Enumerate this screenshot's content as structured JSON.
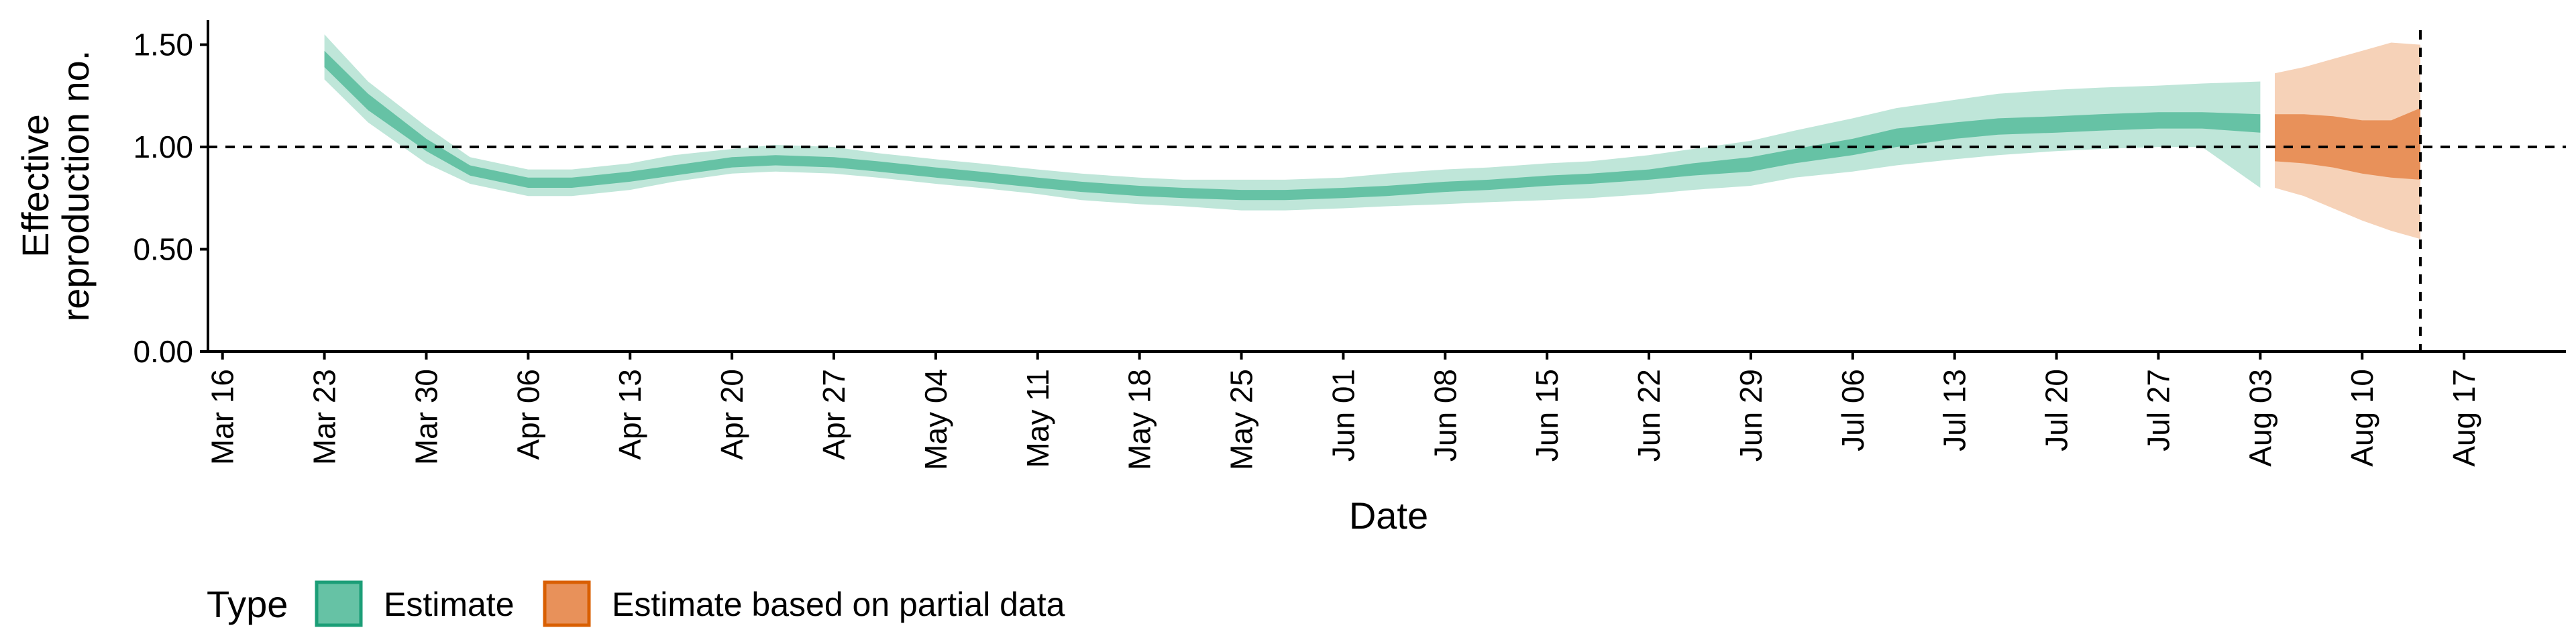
{
  "chart_data": {
    "type": "area",
    "xlabel": "Date",
    "ylabel_lines": [
      "Effective",
      "reproduction no."
    ],
    "ylim": [
      0,
      1.62
    ],
    "xlim": [
      "2020-03-15",
      "2020-08-24"
    ],
    "y_ticks": [
      "0.00",
      "0.50",
      "1.00",
      "1.50"
    ],
    "x_ticks": [
      "Mar 16",
      "Mar 23",
      "Mar 30",
      "Apr 06",
      "Apr 13",
      "Apr 20",
      "Apr 27",
      "May 04",
      "May 11",
      "May 18",
      "May 25",
      "Jun 01",
      "Jun 08",
      "Jun 15",
      "Jun 22",
      "Jun 29",
      "Jul 06",
      "Jul 13",
      "Jul 20",
      "Jul 27",
      "Aug 03",
      "Aug 10",
      "Aug 17"
    ],
    "reference_line_y": 1.0,
    "vertical_line_x": "2020-08-14",
    "legend": {
      "title": "Type",
      "position": "bottom-left",
      "entries": [
        "Estimate",
        "Estimate based on partial data"
      ]
    },
    "colors": {
      "estimate_inner": "#66c2a5",
      "estimate_outer": "#bfe6d9",
      "estimate_border": "#1b9e77",
      "partial_inner": "#e8915a",
      "partial_outer": "#f6d2b8",
      "partial_border": "#d95f02"
    },
    "series": [
      {
        "name": "Estimate",
        "x": [
          "2020-03-23",
          "2020-03-26",
          "2020-03-30",
          "2020-04-02",
          "2020-04-06",
          "2020-04-09",
          "2020-04-13",
          "2020-04-16",
          "2020-04-20",
          "2020-04-23",
          "2020-04-27",
          "2020-04-30",
          "2020-05-04",
          "2020-05-07",
          "2020-05-11",
          "2020-05-14",
          "2020-05-18",
          "2020-05-21",
          "2020-05-25",
          "2020-05-28",
          "2020-06-01",
          "2020-06-04",
          "2020-06-08",
          "2020-06-11",
          "2020-06-15",
          "2020-06-18",
          "2020-06-22",
          "2020-06-25",
          "2020-06-29",
          "2020-07-02",
          "2020-07-06",
          "2020-07-09",
          "2020-07-13",
          "2020-07-16",
          "2020-07-20",
          "2020-07-23",
          "2020-07-27",
          "2020-07-30",
          "2020-08-03"
        ],
        "median": [
          1.43,
          1.22,
          1.01,
          0.88,
          0.82,
          0.82,
          0.85,
          0.88,
          0.92,
          0.93,
          0.92,
          0.9,
          0.87,
          0.85,
          0.82,
          0.8,
          0.78,
          0.77,
          0.76,
          0.76,
          0.77,
          0.78,
          0.8,
          0.81,
          0.83,
          0.84,
          0.86,
          0.88,
          0.91,
          0.95,
          1.0,
          1.04,
          1.08,
          1.1,
          1.11,
          1.12,
          1.13,
          1.13,
          1.12
        ],
        "lower_50": [
          1.39,
          1.18,
          0.98,
          0.86,
          0.8,
          0.8,
          0.83,
          0.86,
          0.9,
          0.91,
          0.9,
          0.88,
          0.85,
          0.83,
          0.8,
          0.78,
          0.76,
          0.75,
          0.74,
          0.74,
          0.75,
          0.76,
          0.78,
          0.79,
          0.81,
          0.82,
          0.84,
          0.86,
          0.88,
          0.92,
          0.96,
          1.0,
          1.04,
          1.06,
          1.07,
          1.08,
          1.09,
          1.09,
          1.07
        ],
        "upper_50": [
          1.47,
          1.26,
          1.04,
          0.91,
          0.85,
          0.85,
          0.88,
          0.91,
          0.95,
          0.96,
          0.95,
          0.93,
          0.9,
          0.88,
          0.85,
          0.83,
          0.81,
          0.8,
          0.79,
          0.79,
          0.8,
          0.81,
          0.83,
          0.84,
          0.86,
          0.87,
          0.89,
          0.92,
          0.95,
          0.99,
          1.04,
          1.09,
          1.12,
          1.14,
          1.15,
          1.16,
          1.17,
          1.17,
          1.16
        ],
        "lower_90": [
          1.33,
          1.12,
          0.92,
          0.82,
          0.76,
          0.76,
          0.79,
          0.83,
          0.87,
          0.88,
          0.87,
          0.85,
          0.82,
          0.8,
          0.77,
          0.74,
          0.72,
          0.71,
          0.69,
          0.69,
          0.7,
          0.71,
          0.72,
          0.73,
          0.74,
          0.75,
          0.77,
          0.79,
          0.81,
          0.85,
          0.88,
          0.91,
          0.94,
          0.96,
          0.98,
          0.99,
          1.0,
          1.0,
          0.8
        ],
        "upper_90": [
          1.55,
          1.32,
          1.1,
          0.95,
          0.89,
          0.89,
          0.92,
          0.96,
          0.99,
          1.01,
          1.0,
          0.97,
          0.94,
          0.92,
          0.89,
          0.87,
          0.85,
          0.84,
          0.84,
          0.84,
          0.85,
          0.87,
          0.89,
          0.9,
          0.92,
          0.93,
          0.96,
          0.99,
          1.03,
          1.08,
          1.14,
          1.19,
          1.23,
          1.26,
          1.28,
          1.29,
          1.3,
          1.31,
          1.32
        ]
      },
      {
        "name": "Estimate based on partial data",
        "x": [
          "2020-08-04",
          "2020-08-06",
          "2020-08-08",
          "2020-08-10",
          "2020-08-12",
          "2020-08-14"
        ],
        "median": [
          1.02,
          1.01,
          1.0,
          0.99,
          0.98,
          1.0
        ],
        "lower_50": [
          0.93,
          0.92,
          0.9,
          0.87,
          0.85,
          0.84
        ],
        "upper_50": [
          1.16,
          1.16,
          1.15,
          1.13,
          1.13,
          1.19
        ],
        "lower_90": [
          0.8,
          0.76,
          0.7,
          0.64,
          0.59,
          0.55
        ],
        "upper_90": [
          1.36,
          1.39,
          1.43,
          1.47,
          1.51,
          1.5
        ]
      }
    ]
  }
}
